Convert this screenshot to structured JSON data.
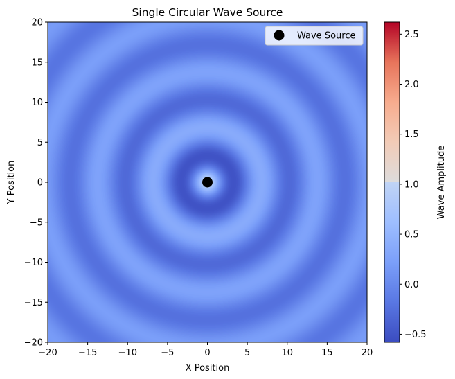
{
  "chart_data": {
    "type": "heatmap",
    "title": "Single Circular Wave Source",
    "xlabel": "X Position",
    "ylabel": "Y Position",
    "xlim": [
      -20,
      20
    ],
    "ylim": [
      -20,
      20
    ],
    "x_ticks": [
      -20,
      -15,
      -10,
      -5,
      0,
      5,
      10,
      15,
      20
    ],
    "y_ticks": [
      -20,
      -15,
      -10,
      -5,
      0,
      5,
      10,
      15,
      20
    ],
    "x_tick_labels": [
      "−20",
      "−15",
      "−10",
      "−5",
      "0",
      "5",
      "10",
      "15",
      "20"
    ],
    "y_tick_labels": [
      "−20",
      "−15",
      "−10",
      "−5",
      "0",
      "5",
      "10",
      "15",
      "20"
    ],
    "colormap": "coolwarm",
    "colorbar": {
      "label": "Wave Amplitude",
      "range": [
        -0.58,
        2.62
      ],
      "ticks": [
        -0.5,
        0.0,
        0.5,
        1.0,
        1.5,
        2.0,
        2.5
      ],
      "tick_labels": [
        "−0.5",
        "0.0",
        "0.5",
        "1.0",
        "1.5",
        "2.0",
        "2.5"
      ]
    },
    "source": {
      "x": 0,
      "y": 0,
      "color": "#000000"
    },
    "legend": {
      "entries": [
        "Wave Source"
      ],
      "placement": "top-right"
    },
    "grid": false
  }
}
